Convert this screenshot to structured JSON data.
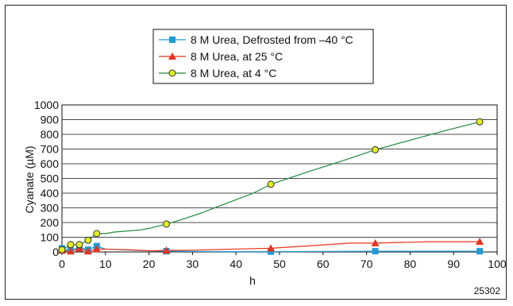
{
  "figure_id": "25302",
  "chart_data": {
    "type": "line",
    "xlabel": "h",
    "ylabel": "Cyanate (µM)",
    "xlim": [
      0,
      100
    ],
    "ylim": [
      0,
      1000
    ],
    "xticks": [
      0,
      10,
      20,
      30,
      40,
      50,
      60,
      70,
      80,
      90,
      100
    ],
    "yticks": [
      0,
      100,
      200,
      300,
      400,
      500,
      600,
      700,
      800,
      900,
      1000
    ],
    "grid": "horizontal",
    "legend_position": "top-center",
    "series": [
      {
        "name": "8 M Urea, Defrosted from –40 °C",
        "color": "#1f9ad6",
        "marker": "square",
        "markers": [
          [
            0,
            25
          ],
          [
            2,
            10
          ],
          [
            4,
            30
          ],
          [
            6,
            15
          ],
          [
            8,
            40
          ],
          [
            24,
            5
          ],
          [
            48,
            2
          ],
          [
            72,
            5
          ],
          [
            96,
            5
          ]
        ],
        "line": [
          [
            0,
            25
          ],
          [
            2,
            10
          ],
          [
            4,
            30
          ],
          [
            6,
            15
          ],
          [
            8,
            40
          ],
          [
            10,
            20
          ],
          [
            16,
            12
          ],
          [
            24,
            5
          ],
          [
            30,
            3
          ],
          [
            40,
            2
          ],
          [
            48,
            2
          ],
          [
            60,
            3
          ],
          [
            72,
            5
          ],
          [
            84,
            5
          ],
          [
            96,
            5
          ]
        ]
      },
      {
        "name": "8 M Urea, at 25 °C",
        "color": "#e8331f",
        "marker": "triangle",
        "markers": [
          [
            0,
            10
          ],
          [
            2,
            5
          ],
          [
            4,
            25
          ],
          [
            6,
            5
          ],
          [
            8,
            20
          ],
          [
            24,
            10
          ],
          [
            48,
            25
          ],
          [
            72,
            60
          ],
          [
            96,
            70
          ]
        ],
        "line": [
          [
            0,
            10
          ],
          [
            2,
            5
          ],
          [
            4,
            25
          ],
          [
            6,
            5
          ],
          [
            8,
            20
          ],
          [
            12,
            18
          ],
          [
            16,
            14
          ],
          [
            20,
            8
          ],
          [
            24,
            10
          ],
          [
            30,
            12
          ],
          [
            40,
            20
          ],
          [
            48,
            25
          ],
          [
            56,
            40
          ],
          [
            66,
            60
          ],
          [
            72,
            60
          ],
          [
            84,
            70
          ],
          [
            96,
            70
          ]
        ]
      },
      {
        "name": "8 M Urea, at 4 °C",
        "color": "#1e8a3c",
        "marker": "circle",
        "markerFill": "#e3ef1c",
        "markers": [
          [
            0,
            15
          ],
          [
            2,
            50
          ],
          [
            4,
            50
          ],
          [
            6,
            80
          ],
          [
            8,
            125
          ],
          [
            24,
            190
          ],
          [
            48,
            460
          ],
          [
            72,
            695
          ],
          [
            96,
            885
          ]
        ],
        "line": [
          [
            0,
            15
          ],
          [
            2,
            50
          ],
          [
            4,
            50
          ],
          [
            6,
            80
          ],
          [
            8,
            125
          ],
          [
            10,
            125
          ],
          [
            12,
            135
          ],
          [
            14,
            140
          ],
          [
            16,
            145
          ],
          [
            18,
            150
          ],
          [
            20,
            160
          ],
          [
            22,
            175
          ],
          [
            24,
            190
          ],
          [
            28,
            225
          ],
          [
            32,
            265
          ],
          [
            36,
            310
          ],
          [
            40,
            355
          ],
          [
            44,
            400
          ],
          [
            48,
            460
          ],
          [
            56,
            540
          ],
          [
            64,
            615
          ],
          [
            72,
            695
          ],
          [
            80,
            760
          ],
          [
            88,
            825
          ],
          [
            96,
            885
          ]
        ]
      }
    ]
  }
}
